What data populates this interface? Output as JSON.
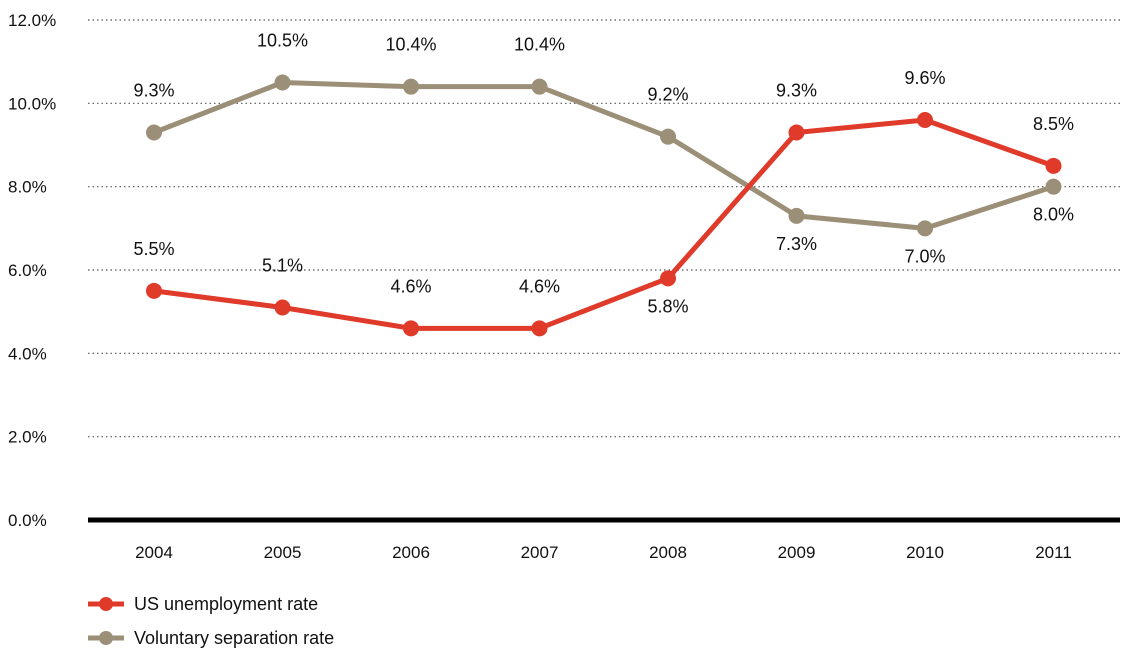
{
  "chart_data": {
    "type": "line",
    "title": "",
    "xlabel": "",
    "ylabel": "",
    "categories": [
      "2004",
      "2005",
      "2006",
      "2007",
      "2008",
      "2009",
      "2010",
      "2011"
    ],
    "y_ticks": [
      "0.0%",
      "2.0%",
      "4.0%",
      "6.0%",
      "8.0%",
      "10.0%",
      "12.0%"
    ],
    "ylim": [
      0,
      12
    ],
    "grid": "horizontal dotted",
    "legend_position": "bottom-left",
    "series": [
      {
        "name": "US unemployment rate",
        "color": "#e03a2a",
        "values": [
          5.5,
          5.1,
          4.6,
          4.6,
          5.8,
          9.3,
          9.6,
          8.5
        ],
        "labels": [
          "5.5%",
          "5.1%",
          "4.6%",
          "4.6%",
          "5.8%",
          "9.3%",
          "9.6%",
          "8.5%"
        ],
        "label_side": [
          "above",
          "above",
          "above",
          "above",
          "below",
          "above",
          "above",
          "above"
        ]
      },
      {
        "name": "Voluntary separation rate",
        "color": "#9b8f77",
        "values": [
          9.3,
          10.5,
          10.4,
          10.4,
          9.2,
          7.3,
          7.0,
          8.0
        ],
        "labels": [
          "9.3%",
          "10.5%",
          "10.4%",
          "10.4%",
          "9.2%",
          "7.3%",
          "7.0%",
          "8.0%"
        ],
        "label_side": [
          "above",
          "above",
          "above",
          "above",
          "above",
          "below",
          "below",
          "below"
        ]
      }
    ]
  }
}
